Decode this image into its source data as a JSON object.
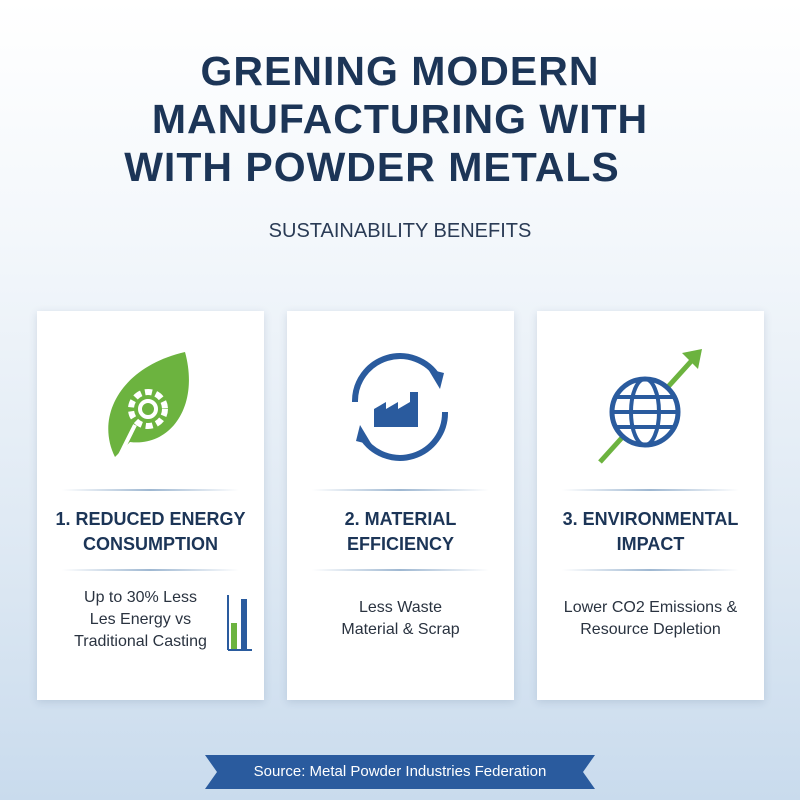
{
  "header": {
    "title_lines": [
      "GRENING MODERN",
      "MANUFACTURING WITH",
      "WITH POWDER METALS"
    ],
    "subtitle": "SUSTAINABILITY BENEFITS"
  },
  "cards": [
    {
      "title_lines": [
        "1. REDUCED ENERGY",
        "CONSUMPTION"
      ],
      "text_lines": [
        "Up to 30% Less",
        "Les Energy vs",
        "Traditional Casting"
      ]
    },
    {
      "title_lines": [
        "2. MATERIAL",
        "EFFICIENCY"
      ],
      "text_lines": [
        "Less Waste",
        "Material & Scrap"
      ]
    },
    {
      "title_lines": [
        "3. ENVIRONMENTAL",
        "IMPACT"
      ],
      "text_lines": [
        "Lower CO2 Emissions &",
        "Resource Depletion"
      ]
    }
  ],
  "footer": {
    "source": "Source: Metal Powder Industries Federation"
  }
}
